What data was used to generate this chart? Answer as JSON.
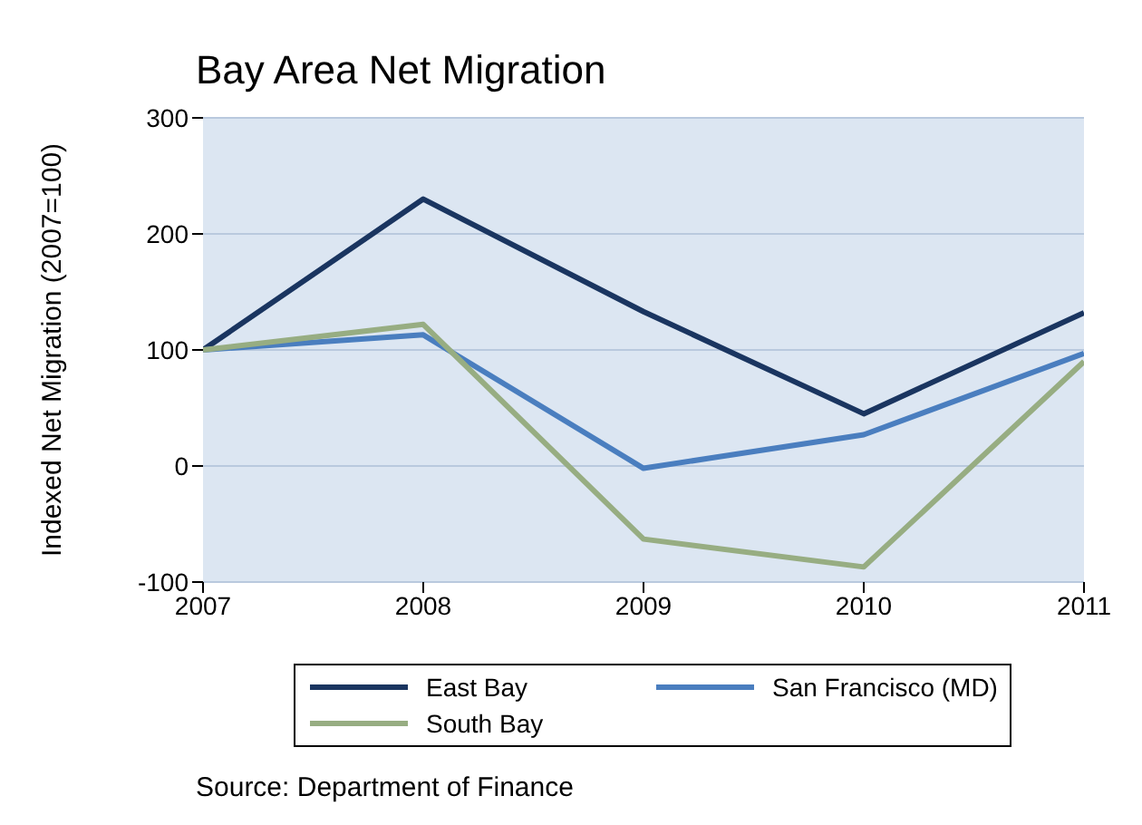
{
  "chart_data": {
    "type": "line",
    "title": "Bay Area Net Migration",
    "ylabel": "Indexed Net Migration (2007=100)",
    "x": [
      2007,
      2008,
      2009,
      2010,
      2011
    ],
    "xlim": [
      2007,
      2011
    ],
    "xticks": [
      2007,
      2008,
      2009,
      2010,
      2011
    ],
    "ylim": [
      -100,
      300
    ],
    "yticks": [
      -100,
      0,
      100,
      200,
      300
    ],
    "grid": "y",
    "legend": "bottom",
    "marker": "none",
    "line_style": "solid",
    "series": [
      {
        "name": "East Bay",
        "color": "#1a3560",
        "values": [
          100,
          230,
          133,
          45,
          132
        ]
      },
      {
        "name": "San Francisco (MD)",
        "color": "#4a7ebf",
        "values": [
          100,
          113,
          -2,
          27,
          97
        ]
      },
      {
        "name": "South Bay",
        "color": "#97ad82",
        "values": [
          100,
          122,
          -63,
          -87,
          90
        ]
      }
    ],
    "annotations": [
      "Source: Department of Finance"
    ]
  }
}
